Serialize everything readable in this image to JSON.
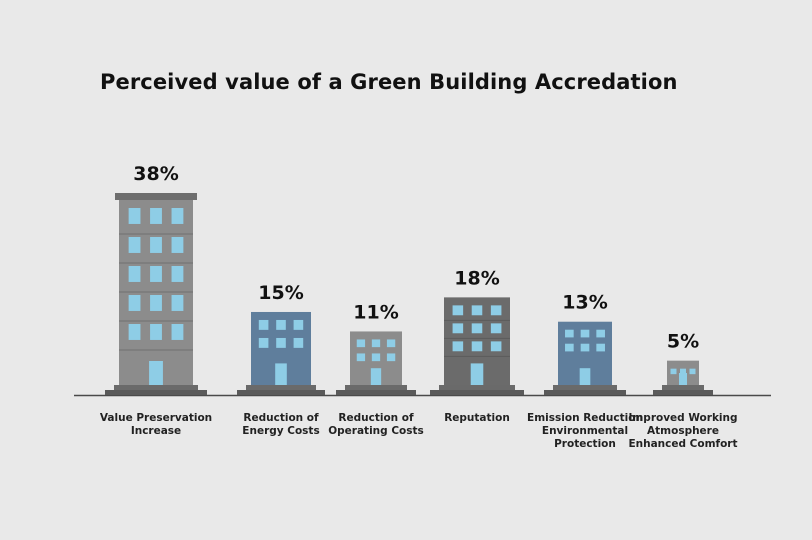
{
  "chart_data": {
    "type": "bar",
    "title": "Perceived value of a Green Building Accredation",
    "xlabel": "",
    "ylabel": "",
    "unit": "%",
    "categories": [
      [
        "Value Preservation",
        "Increase"
      ],
      [
        "Reduction of",
        "Energy Costs"
      ],
      [
        "Reduction of",
        "Operating Costs"
      ],
      [
        "Reputation"
      ],
      [
        "Emission Reduction",
        "Environmental",
        "Protection"
      ],
      [
        "Improved Working",
        "Atmosphere",
        "Enhanced Comfort"
      ]
    ],
    "values": [
      38,
      15,
      11,
      18,
      13,
      5
    ],
    "data_labels": [
      "38%",
      "15%",
      "11%",
      "18%",
      "13%",
      "5%"
    ],
    "bar_style": "building-icons",
    "colors": {
      "grey_building": "#8c8c8c",
      "grey_floor_line": "#6f6f6f",
      "blue_building": "#5f7e9c",
      "blue_floor_line": "#4d6a86",
      "dark_building": "#6b6b6b",
      "window": "#8ecde6",
      "base": "#5a5a5a",
      "axis": "#4a4a4a"
    },
    "building_colors": [
      "grey",
      "blue",
      "grey",
      "dark",
      "blue",
      "grey"
    ]
  }
}
